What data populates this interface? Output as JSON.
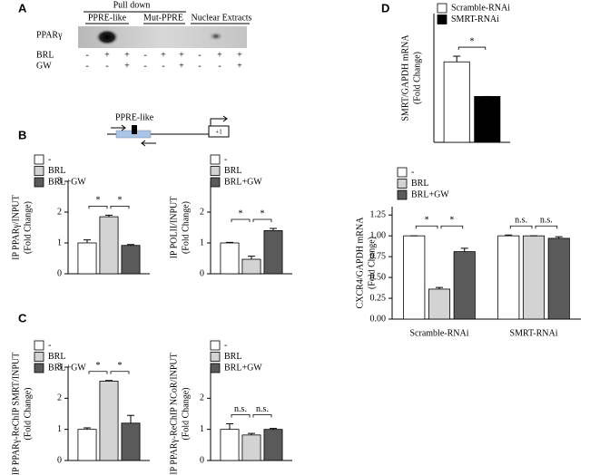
{
  "panels": [
    "A",
    "B",
    "C",
    "D"
  ],
  "blot": {
    "header": "Pull down",
    "groups": [
      "PPRE-like",
      "Mut-PPRE",
      "Nuclear Extracts"
    ],
    "protein": "PPARγ",
    "rows": [
      {
        "label": "BRL",
        "signs": [
          "-",
          "+",
          "+",
          "-",
          "+",
          "+",
          "-",
          "+",
          "+"
        ]
      },
      {
        "label": "GW",
        "signs": [
          "-",
          "-",
          "+",
          "-",
          "-",
          "+",
          "-",
          "-",
          "+"
        ]
      }
    ]
  },
  "diagram": {
    "element": "PPRE-like",
    "tss": "+1"
  },
  "chart_data": [
    {
      "type": "bar",
      "ylabel": [
        "IP PPARγ/INPUT",
        "(Fold Change)"
      ],
      "categories": [
        null
      ],
      "ylim": [
        0,
        3
      ],
      "yticks": [
        0,
        1,
        2,
        3
      ],
      "series": [
        {
          "name": "-",
          "color": "#ffffff",
          "values": [
            1.0
          ],
          "errors": [
            0.1
          ]
        },
        {
          "name": "BRL",
          "color": "#d3d3d3",
          "values": [
            1.85
          ],
          "errors": [
            0.05
          ]
        },
        {
          "name": "BRL+GW",
          "color": "#5a5a5a",
          "values": [
            0.92
          ],
          "errors": [
            0.03
          ]
        }
      ],
      "annotations": [
        {
          "text": "*",
          "group": 0,
          "between": [
            0,
            1
          ]
        },
        {
          "text": "*",
          "group": 0,
          "between": [
            1,
            2
          ]
        }
      ]
    },
    {
      "type": "bar",
      "ylabel": [
        "IP POLII/INPUT",
        "(Fold Change)"
      ],
      "categories": [
        null
      ],
      "ylim": [
        0,
        3
      ],
      "yticks": [
        0,
        1,
        2
      ],
      "series": [
        {
          "name": "-",
          "color": "#ffffff",
          "values": [
            1.0
          ],
          "errors": [
            0.02
          ]
        },
        {
          "name": "BRL",
          "color": "#d3d3d3",
          "values": [
            0.47
          ],
          "errors": [
            0.1
          ]
        },
        {
          "name": "BRL+GW",
          "color": "#5a5a5a",
          "values": [
            1.4
          ],
          "errors": [
            0.07
          ]
        }
      ],
      "annotations": [
        {
          "text": "*",
          "group": 0,
          "between": [
            0,
            1
          ]
        },
        {
          "text": "*",
          "group": 0,
          "between": [
            1,
            2
          ]
        }
      ]
    },
    {
      "type": "bar",
      "ylabel": [
        "IP PPARγ-ReChIP SMRT/INPUT",
        "(Fold Change)"
      ],
      "categories": [
        null
      ],
      "ylim": [
        0,
        3
      ],
      "yticks": [
        0,
        1,
        2,
        3
      ],
      "series": [
        {
          "name": "-",
          "color": "#ffffff",
          "values": [
            1.0
          ],
          "errors": [
            0.05
          ]
        },
        {
          "name": "BRL",
          "color": "#d3d3d3",
          "values": [
            2.55
          ],
          "errors": [
            0.02
          ]
        },
        {
          "name": "BRL+GW",
          "color": "#5a5a5a",
          "values": [
            1.2
          ],
          "errors": [
            0.25
          ]
        }
      ],
      "annotations": [
        {
          "text": "*",
          "group": 0,
          "between": [
            0,
            1
          ]
        },
        {
          "text": "*",
          "group": 0,
          "between": [
            1,
            2
          ]
        }
      ]
    },
    {
      "type": "bar",
      "ylabel": [
        "IP PPARγ-ReChIP NCoR/INPUT",
        "(Fold Change)"
      ],
      "categories": [
        null
      ],
      "ylim": [
        0,
        3
      ],
      "yticks": [
        0,
        1,
        2
      ],
      "series": [
        {
          "name": "-",
          "color": "#ffffff",
          "values": [
            1.0
          ],
          "errors": [
            0.18
          ]
        },
        {
          "name": "BRL",
          "color": "#d3d3d3",
          "values": [
            0.82
          ],
          "errors": [
            0.05
          ]
        },
        {
          "name": "BRL+GW",
          "color": "#5a5a5a",
          "values": [
            1.0
          ],
          "errors": [
            0.03
          ]
        }
      ],
      "annotations": [
        {
          "text": "n.s.",
          "group": 0,
          "between": [
            0,
            1
          ]
        },
        {
          "text": "n.s.",
          "group": 0,
          "between": [
            1,
            2
          ]
        }
      ]
    },
    {
      "type": "bar",
      "ylabel": [
        "SMRT/GAPDH mRNA",
        "(Fold Change)"
      ],
      "categories": [
        null
      ],
      "ylim": [
        0,
        1.6
      ],
      "yticks": [],
      "series": [
        {
          "name": "Scramble-RNAi",
          "color": "#ffffff",
          "values": [
            1.0
          ],
          "errors": [
            0.07
          ]
        },
        {
          "name": "SMRT-RNAi",
          "color": "#000000",
          "values": [
            0.57
          ],
          "errors": [
            0
          ]
        }
      ],
      "annotations": [
        {
          "text": "*",
          "group": 0,
          "between": [
            0,
            1
          ]
        }
      ]
    },
    {
      "type": "bar",
      "ylabel": [
        "CXCR4/GAPDH mRNA",
        "(Fold Change)"
      ],
      "categories": [
        "Scramble-RNAi",
        "SMRT-RNAi"
      ],
      "ylim": [
        0,
        1.35
      ],
      "yticks": [
        {
          "value": 0,
          "label": "0.00"
        },
        {
          "value": 0.25,
          "label": "0.25"
        },
        {
          "value": 0.5,
          "label": "0.50"
        },
        {
          "value": 0.75,
          "label": "0.75"
        },
        {
          "value": 1,
          "label": "1.00"
        },
        {
          "value": 1.25,
          "label": "1.25"
        }
      ],
      "series": [
        {
          "name": "-",
          "color": "#ffffff",
          "values": [
            1.0,
            1.0
          ],
          "errors": [
            0,
            0.01
          ]
        },
        {
          "name": "BRL",
          "color": "#d3d3d3",
          "values": [
            0.36,
            1.0
          ],
          "errors": [
            0.02,
            0
          ]
        },
        {
          "name": "BRL+GW",
          "color": "#5a5a5a",
          "values": [
            0.81,
            0.97
          ],
          "errors": [
            0.04,
            0.02
          ]
        }
      ],
      "annotations": [
        {
          "text": "*",
          "group": 0,
          "between": [
            0,
            1
          ]
        },
        {
          "text": "*",
          "group": 0,
          "between": [
            1,
            2
          ]
        },
        {
          "text": "n.s.",
          "group": 1,
          "between": [
            0,
            1
          ]
        },
        {
          "text": "n.s.",
          "group": 1,
          "between": [
            1,
            2
          ]
        }
      ]
    }
  ]
}
